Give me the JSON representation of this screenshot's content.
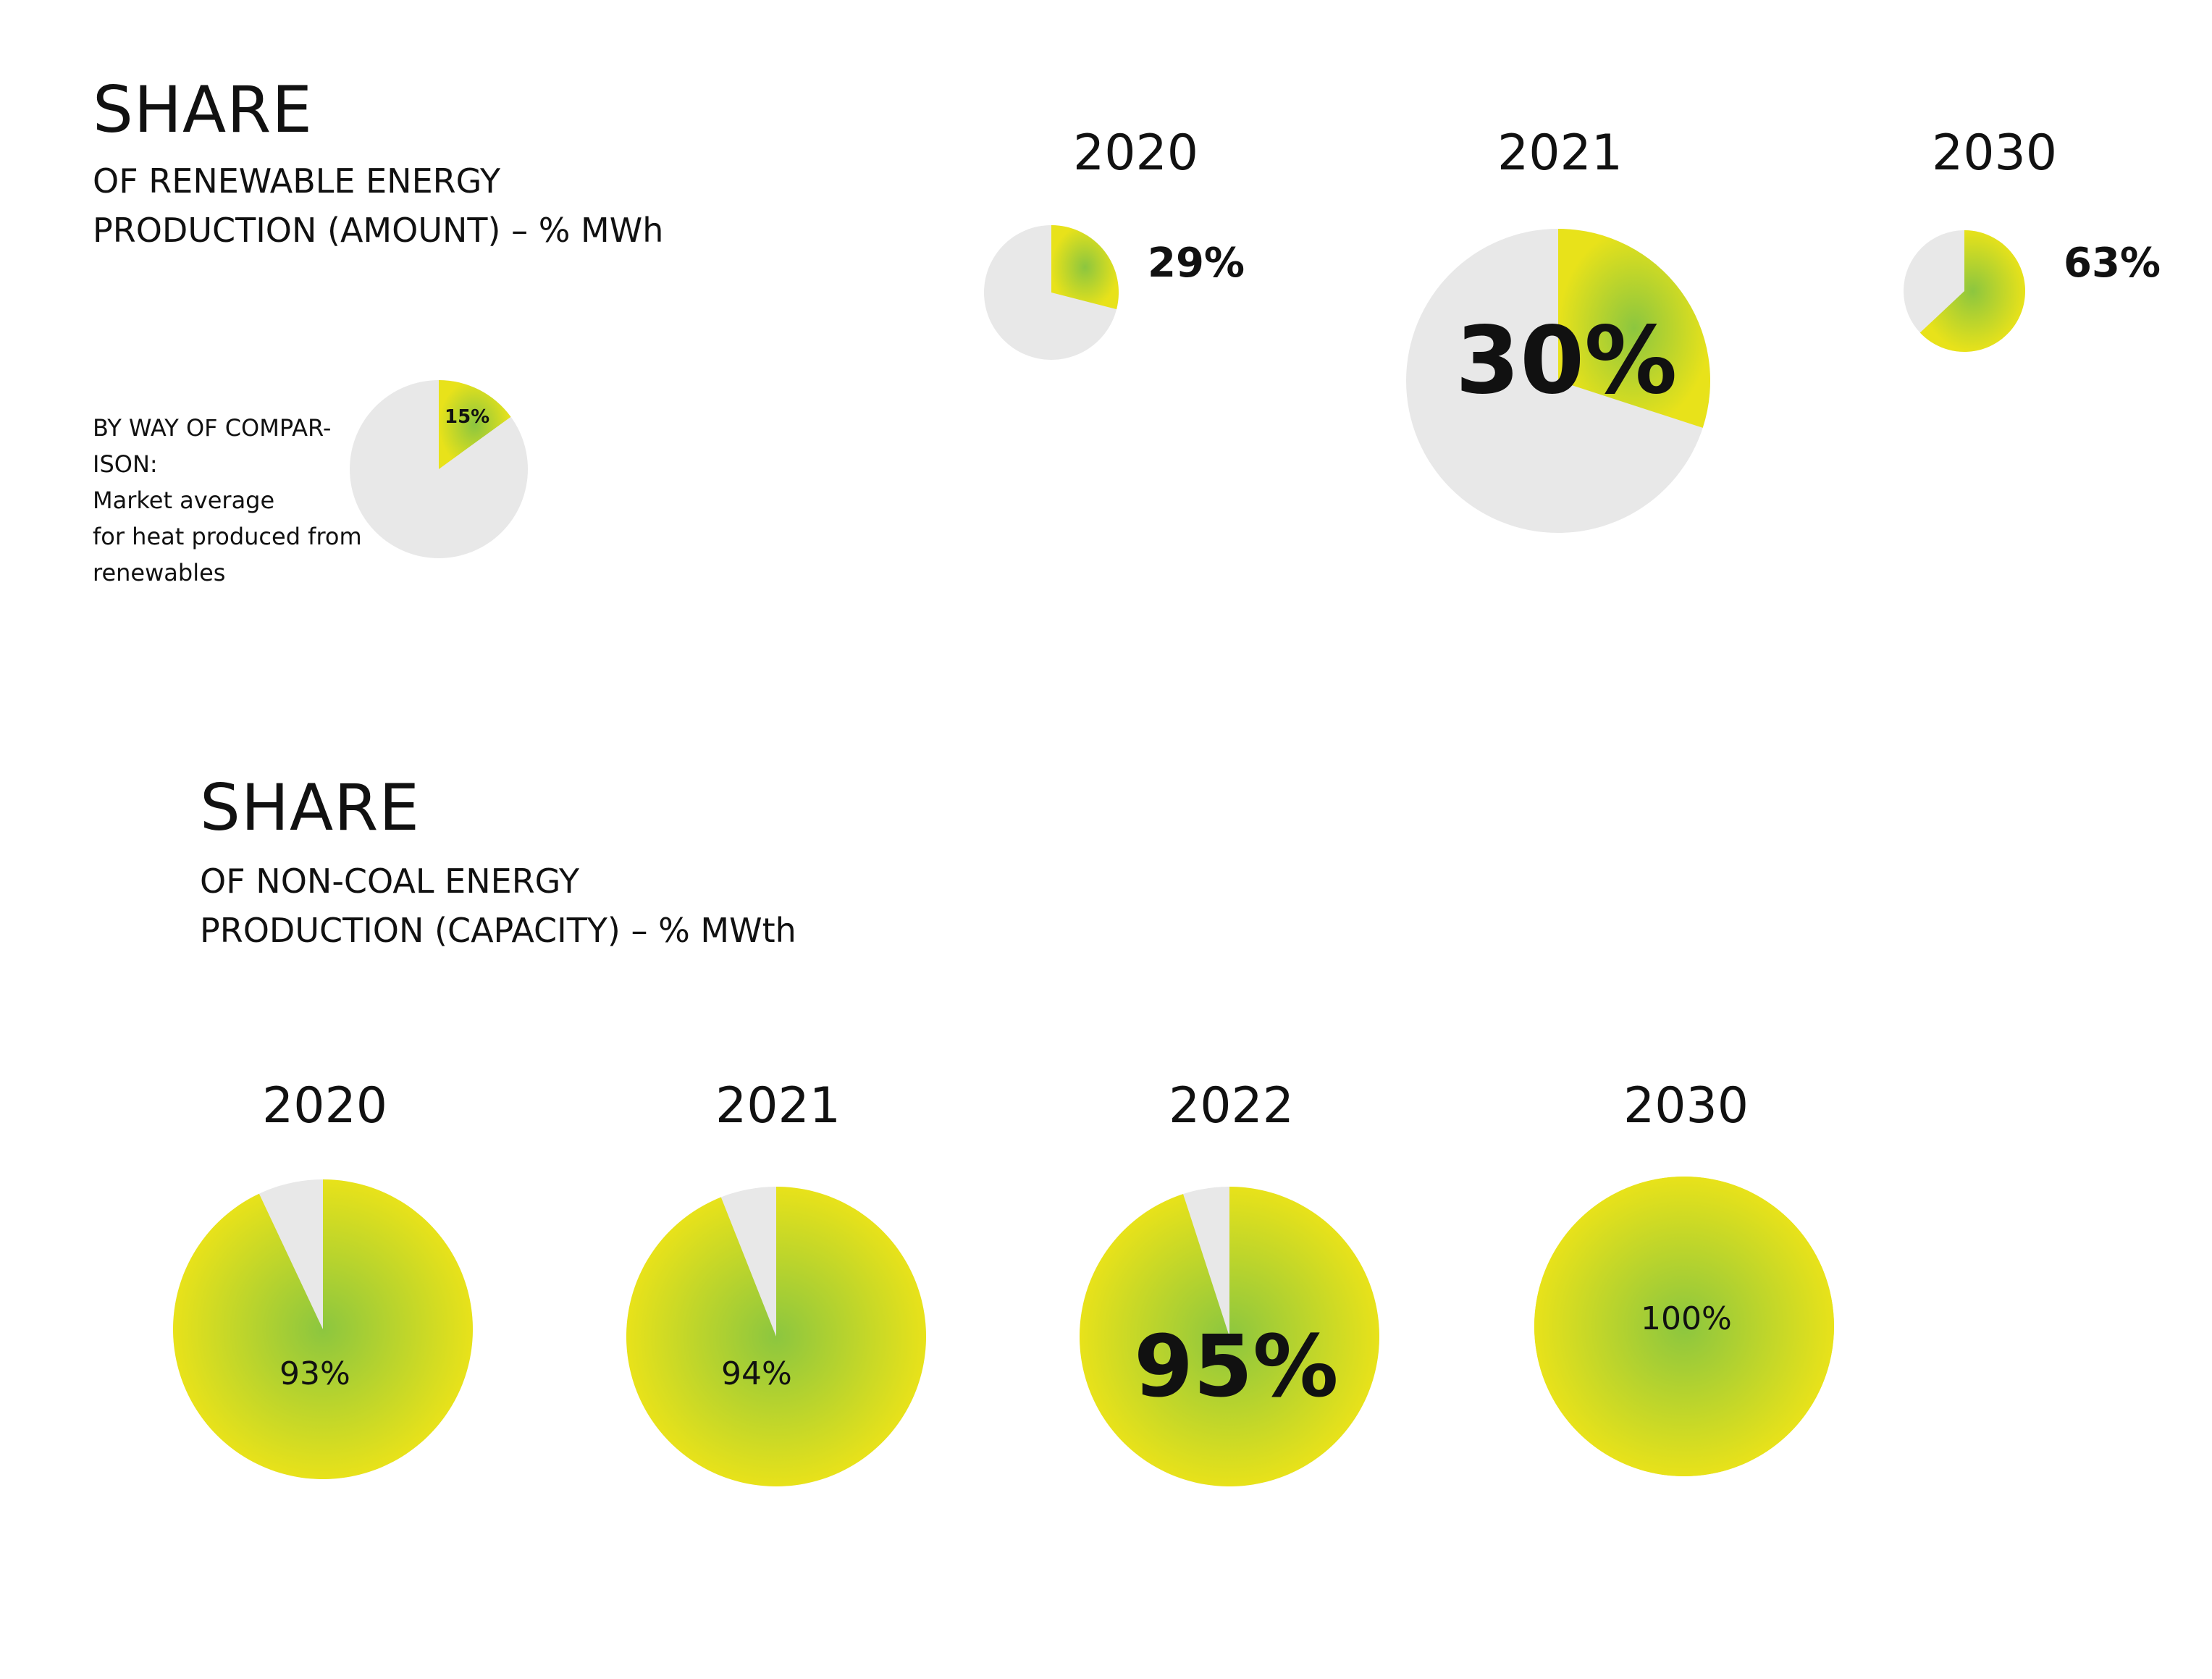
{
  "section1": {
    "title": "SHARE",
    "subtitle_line1": "OF RENEWABLE ENERGY",
    "subtitle_line2": "PRODUCTION (AMOUNT) – % MWh",
    "comparison_line1": "BY WAY OF COMPAR-",
    "comparison_line2": "ISON:",
    "comparison_line3": "Market average",
    "comparison_line4": "for heat produced from",
    "comparison_line5": "renewables"
  },
  "section2": {
    "title": "SHARE",
    "subtitle_line1": "OF NON-COAL ENERGY",
    "subtitle_line2": "PRODUCTION (CAPACITY) – % MWth"
  },
  "colors": {
    "fill_center": "#8cc63f",
    "fill_edge": "#e8e21a",
    "remainder": "#e8e8e8",
    "text": "#111111"
  },
  "chart_data": [
    {
      "type": "pie",
      "series": [
        {
          "year": "2020",
          "value": 29,
          "label": "29%"
        },
        {
          "year": "2021",
          "value": 30,
          "label": "30%"
        },
        {
          "year": "2030",
          "value": 63,
          "label": "63%"
        }
      ],
      "comparison": {
        "value": 15,
        "label": "15%"
      },
      "unit": "% MWh"
    },
    {
      "type": "pie",
      "series": [
        {
          "year": "2020",
          "value": 93,
          "label": "93%"
        },
        {
          "year": "2021",
          "value": 94,
          "label": "94%"
        },
        {
          "year": "2022",
          "value": 95,
          "label": "95%"
        },
        {
          "year": "2030",
          "value": 100,
          "label": "100%"
        }
      ],
      "unit": "% MWth"
    }
  ]
}
